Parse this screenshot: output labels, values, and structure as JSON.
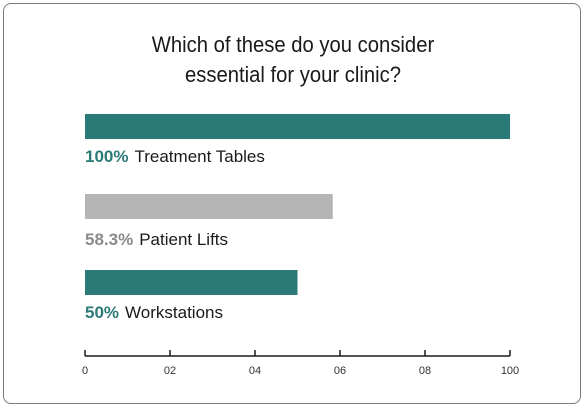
{
  "chart_data": {
    "type": "bar",
    "orientation": "horizontal",
    "title": "Which of these do you consider\nessential for your clinic?",
    "categories": [
      "Treatment Tables",
      "Patient Lifts",
      "Workstations"
    ],
    "values": [
      100,
      58.3,
      50
    ],
    "value_labels": [
      "100%",
      "58.3%",
      "50%"
    ],
    "colors": [
      "#2b7a78",
      "#b5b5b5",
      "#2b7a78"
    ],
    "label_colors": [
      "#2b7a78",
      "#8a8a8a",
      "#2b7a78"
    ],
    "xlim": [
      0,
      100
    ],
    "ticks": [
      "0",
      "02",
      "04",
      "06",
      "08",
      "100"
    ],
    "grid": false
  }
}
